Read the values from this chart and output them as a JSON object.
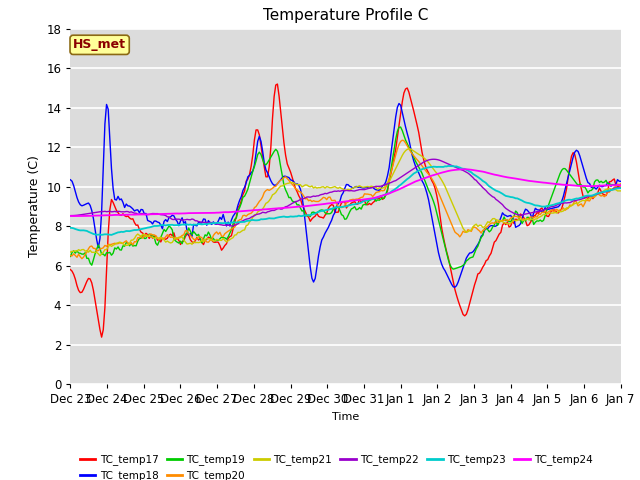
{
  "title": "Temperature Profile C",
  "xlabel": "Time",
  "ylabel": "Temperature (C)",
  "ylim": [
    0,
    18
  ],
  "annotation_text": "HS_met",
  "annotation_color": "#8B0000",
  "annotation_bg": "#FFFF99",
  "background_color": "#DCDCDC",
  "grid_color": "white",
  "series": {
    "TC_temp17": {
      "color": "#FF0000",
      "lw": 1.0
    },
    "TC_temp18": {
      "color": "#0000FF",
      "lw": 1.0
    },
    "TC_temp19": {
      "color": "#00CC00",
      "lw": 1.0
    },
    "TC_temp20": {
      "color": "#FF8C00",
      "lw": 1.0
    },
    "TC_temp21": {
      "color": "#CCCC00",
      "lw": 1.0
    },
    "TC_temp22": {
      "color": "#9900CC",
      "lw": 1.0
    },
    "TC_temp23": {
      "color": "#00CCCC",
      "lw": 1.3
    },
    "TC_temp24": {
      "color": "#FF00FF",
      "lw": 1.3
    }
  },
  "xtick_labels": [
    "Dec 23",
    "Dec 24",
    "Dec 25",
    "Dec 26",
    "Dec 27",
    "Dec 28",
    "Dec 29",
    "Dec 30",
    "Dec 31",
    "Jan 1",
    "Jan 2",
    "Jan 3",
    "Jan 4",
    "Jan 5",
    "Jan 6",
    "Jan 7"
  ],
  "n_points": 336
}
